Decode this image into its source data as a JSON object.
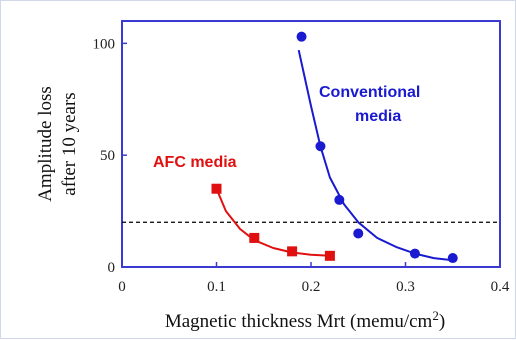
{
  "chart_data": {
    "type": "scatter",
    "xlabel": "Magnetic thickness Mrt (memu/cm",
    "xlabel_sup": "2",
    "xlabel_end": ")",
    "ylabel_line1": "Amplitude loss",
    "ylabel_line2": "after 10 years",
    "xlim": [
      0,
      0.4
    ],
    "ylim": [
      0,
      110
    ],
    "xticks": [
      0,
      0.1,
      0.2,
      0.3,
      0.4
    ],
    "xtick_labels": [
      "0",
      "0.1",
      "0.2",
      "0.3",
      "0.4"
    ],
    "yticks": [
      0,
      50,
      100
    ],
    "ytick_labels": [
      "0",
      "50",
      "100"
    ],
    "reference_line": {
      "y": 20,
      "style": "dashed",
      "color": "#000000"
    },
    "plot_border_color": "#3a3ad0",
    "grid": false,
    "series": [
      {
        "name_line1": "Conventional",
        "name_line2": "media",
        "color": "#1a1ad0",
        "marker": "circle",
        "points": [
          {
            "x": 0.19,
            "y": 103
          },
          {
            "x": 0.21,
            "y": 54
          },
          {
            "x": 0.23,
            "y": 30
          },
          {
            "x": 0.25,
            "y": 15
          },
          {
            "x": 0.31,
            "y": 6
          },
          {
            "x": 0.35,
            "y": 4
          }
        ],
        "curve": [
          {
            "x": 0.187,
            "y": 97
          },
          {
            "x": 0.2,
            "y": 72
          },
          {
            "x": 0.21,
            "y": 54
          },
          {
            "x": 0.22,
            "y": 40
          },
          {
            "x": 0.235,
            "y": 28
          },
          {
            "x": 0.25,
            "y": 20
          },
          {
            "x": 0.27,
            "y": 13
          },
          {
            "x": 0.29,
            "y": 9
          },
          {
            "x": 0.31,
            "y": 6
          },
          {
            "x": 0.33,
            "y": 4
          },
          {
            "x": 0.35,
            "y": 3
          }
        ]
      },
      {
        "name_line1": "AFC media",
        "name_line2": "",
        "color": "#e01010",
        "marker": "square",
        "points": [
          {
            "x": 0.1,
            "y": 35
          },
          {
            "x": 0.14,
            "y": 13
          },
          {
            "x": 0.18,
            "y": 7
          },
          {
            "x": 0.22,
            "y": 5
          }
        ],
        "curve": [
          {
            "x": 0.1,
            "y": 35
          },
          {
            "x": 0.11,
            "y": 25
          },
          {
            "x": 0.125,
            "y": 17
          },
          {
            "x": 0.14,
            "y": 12
          },
          {
            "x": 0.16,
            "y": 8.5
          },
          {
            "x": 0.18,
            "y": 6.5
          },
          {
            "x": 0.2,
            "y": 5.5
          },
          {
            "x": 0.22,
            "y": 5
          }
        ]
      }
    ]
  }
}
